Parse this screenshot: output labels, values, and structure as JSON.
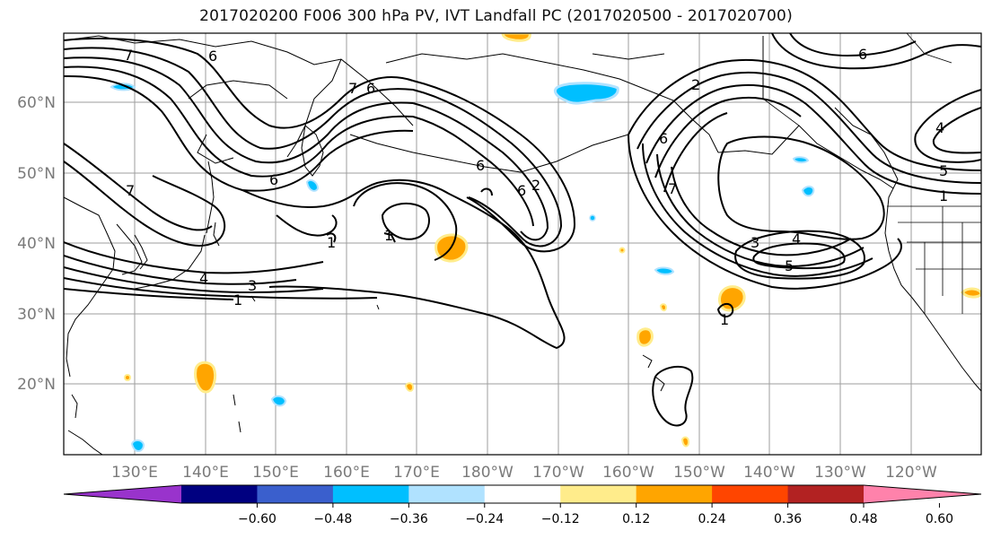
{
  "title": "2017020200 F006 300 hPa PV, IVT Landfall PC (2017020500 - 2017020700)",
  "map": {
    "lat_ticks": [
      "60°N",
      "50°N",
      "40°N",
      "30°N",
      "20°N"
    ],
    "lon_ticks": [
      "130°E",
      "140°E",
      "150°E",
      "160°E",
      "170°E",
      "180°W",
      "170°W",
      "160°W",
      "150°W",
      "140°W",
      "130°W",
      "120°W"
    ],
    "contour_labels": [
      "7",
      "6",
      "7",
      "6",
      "2",
      "6",
      "6",
      "7",
      "1",
      "1",
      "6",
      "2",
      "3",
      "4",
      "1",
      "3",
      "4",
      "5",
      "7",
      "6",
      "1",
      "4",
      "5",
      "1",
      "6"
    ]
  },
  "colorbar": {
    "colors": [
      "#9933cc",
      "#000080",
      "#3a5fcd",
      "#00bfff",
      "#b0e2ff",
      "#ffffff",
      "#ffec8b",
      "#ffa500",
      "#ff4500",
      "#b22222",
      "#ff82ab"
    ],
    "tick_labels": [
      "−0.60",
      "−0.48",
      "−0.36",
      "−0.24",
      "−0.12",
      "0.12",
      "0.24",
      "0.36",
      "0.48",
      "0.60"
    ]
  }
}
